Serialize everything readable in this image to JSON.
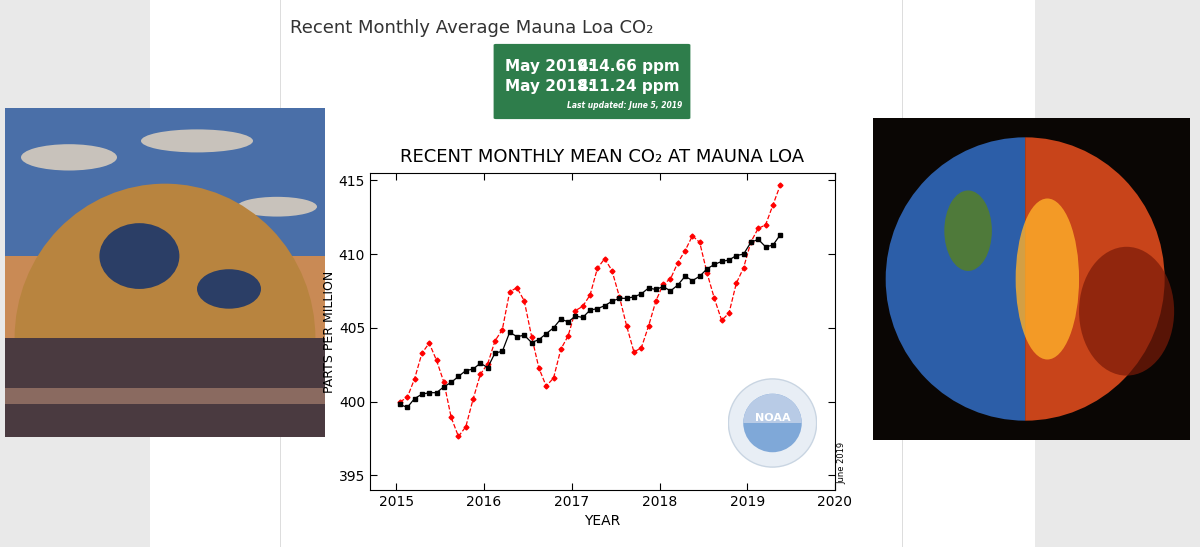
{
  "header": "Recent Monthly Average Mauna Loa CO₂",
  "stat_box": {
    "rows": [
      {
        "label": "May 2019:",
        "value": 414.66,
        "unit": "ppm"
      },
      {
        "label": "May 2018:",
        "value": 411.24,
        "unit": "ppm"
      }
    ],
    "note": "Last updated: June 5, 2019"
  },
  "chart_data": {
    "type": "line",
    "title": "RECENT MONTHLY MEAN CO₂ AT MAUNA LOA",
    "x_label": "YEAR",
    "y_label": "PARTS PER MILLION",
    "side_note": "June 2019",
    "logo_text": "NOAA",
    "x": [
      2015.042,
      2015.125,
      2015.208,
      2015.292,
      2015.375,
      2015.458,
      2015.542,
      2015.625,
      2015.708,
      2015.792,
      2015.875,
      2015.958,
      2016.042,
      2016.125,
      2016.208,
      2016.292,
      2016.375,
      2016.458,
      2016.542,
      2016.625,
      2016.708,
      2016.792,
      2016.875,
      2016.958,
      2017.042,
      2017.125,
      2017.208,
      2017.292,
      2017.375,
      2017.458,
      2017.542,
      2017.625,
      2017.708,
      2017.792,
      2017.875,
      2017.958,
      2018.042,
      2018.125,
      2018.208,
      2018.292,
      2018.375,
      2018.458,
      2018.542,
      2018.625,
      2018.708,
      2018.792,
      2018.875,
      2018.958,
      2019.042,
      2019.125,
      2019.208,
      2019.292,
      2019.375
    ],
    "series": [
      {
        "color": "#ff0000",
        "marker": "diamond",
        "line_style": "dashed",
        "values": [
          399.98,
          400.28,
          401.54,
          403.28,
          403.96,
          402.8,
          401.31,
          398.93,
          397.63,
          398.29,
          400.16,
          401.85,
          402.56,
          404.12,
          404.87,
          407.45,
          407.72,
          406.83,
          404.41,
          402.27,
          401.05,
          401.59,
          403.55,
          404.45,
          406.17,
          406.46,
          407.22,
          409.04,
          409.69,
          408.88,
          407.12,
          405.13,
          403.37,
          403.63,
          405.12,
          406.81,
          407.96,
          408.32,
          409.41,
          410.24,
          411.24,
          410.79,
          408.71,
          406.99,
          405.51,
          406.0,
          408.02,
          409.07,
          410.83,
          411.75,
          411.97,
          413.32,
          414.66
        ]
      },
      {
        "color": "#000000",
        "marker": "square",
        "line_style": "solid",
        "values": [
          399.8,
          399.6,
          400.2,
          400.5,
          400.6,
          400.6,
          401.0,
          401.3,
          401.7,
          402.1,
          402.2,
          402.6,
          402.3,
          403.3,
          403.4,
          404.7,
          404.4,
          404.5,
          404.0,
          404.2,
          404.6,
          405.0,
          405.6,
          405.4,
          405.8,
          405.7,
          406.2,
          406.3,
          406.5,
          406.8,
          407.0,
          407.0,
          407.1,
          407.3,
          407.7,
          407.6,
          407.8,
          407.5,
          407.9,
          408.5,
          408.2,
          408.5,
          409.0,
          409.3,
          409.5,
          409.6,
          409.9,
          410.0,
          410.8,
          411.0,
          410.5,
          410.6,
          411.3
        ]
      }
    ],
    "xlim": [
      2014.7,
      2020
    ],
    "xticks": [
      2015,
      2016,
      2017,
      2018,
      2019,
      2020
    ],
    "ylim": [
      394,
      415.5
    ],
    "yticks": [
      395,
      400,
      405,
      410,
      415
    ],
    "grid": false
  }
}
